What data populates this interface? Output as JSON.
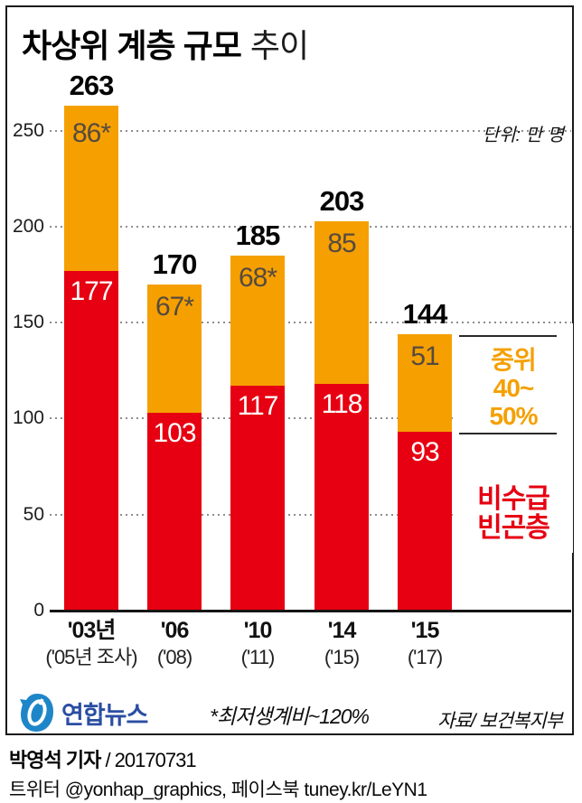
{
  "title": {
    "main": "차상위 계층 규모",
    "sub": "추이"
  },
  "unit_label": "단위: 만 명",
  "chart_data": {
    "type": "bar",
    "stacked": true,
    "title": "차상위 계층 규모 추이",
    "unit": "만 명",
    "categories": [
      "'03년",
      "'06",
      "'10",
      "'14",
      "'15"
    ],
    "category_sub": [
      "('05년 조사)",
      "('08)",
      "('11)",
      "('15)",
      "('17)"
    ],
    "series": [
      {
        "name": "비수급 빈곤층",
        "color": "#e60012",
        "values": [
          177,
          103,
          117,
          118,
          93
        ],
        "labels": [
          "177",
          "103",
          "117",
          "118",
          "93"
        ]
      },
      {
        "name": "중위 40~50%",
        "color": "#f5a000",
        "values": [
          86,
          67,
          68,
          85,
          51
        ],
        "labels": [
          "86*",
          "67*",
          "68*",
          "85",
          "51"
        ]
      }
    ],
    "totals": [
      263,
      170,
      185,
      203,
      144
    ],
    "y_ticks": [
      0,
      50,
      100,
      150,
      200,
      250
    ],
    "ylim": [
      0,
      270
    ],
    "grid": "horizontal-dotted",
    "legend_position": "right"
  },
  "legend": {
    "orange": {
      "lines": [
        "중위",
        "40~",
        "50%"
      ],
      "color": "#f5a000"
    },
    "red": {
      "lines": [
        "비수급",
        "빈곤층"
      ],
      "color": "#e60012"
    }
  },
  "footnote": "*최저생계비~120%",
  "source": "자료/ 보건복지부",
  "logo": {
    "name": "연합뉴스",
    "icon_color": "#1e86c8",
    "text_color": "#2b4ea2"
  },
  "credit": {
    "author": "박영석 기자",
    "rest": " / 20170731"
  },
  "social": "트위터 @yonhap_graphics, 페이스북 tuney.kr/LeYN1"
}
